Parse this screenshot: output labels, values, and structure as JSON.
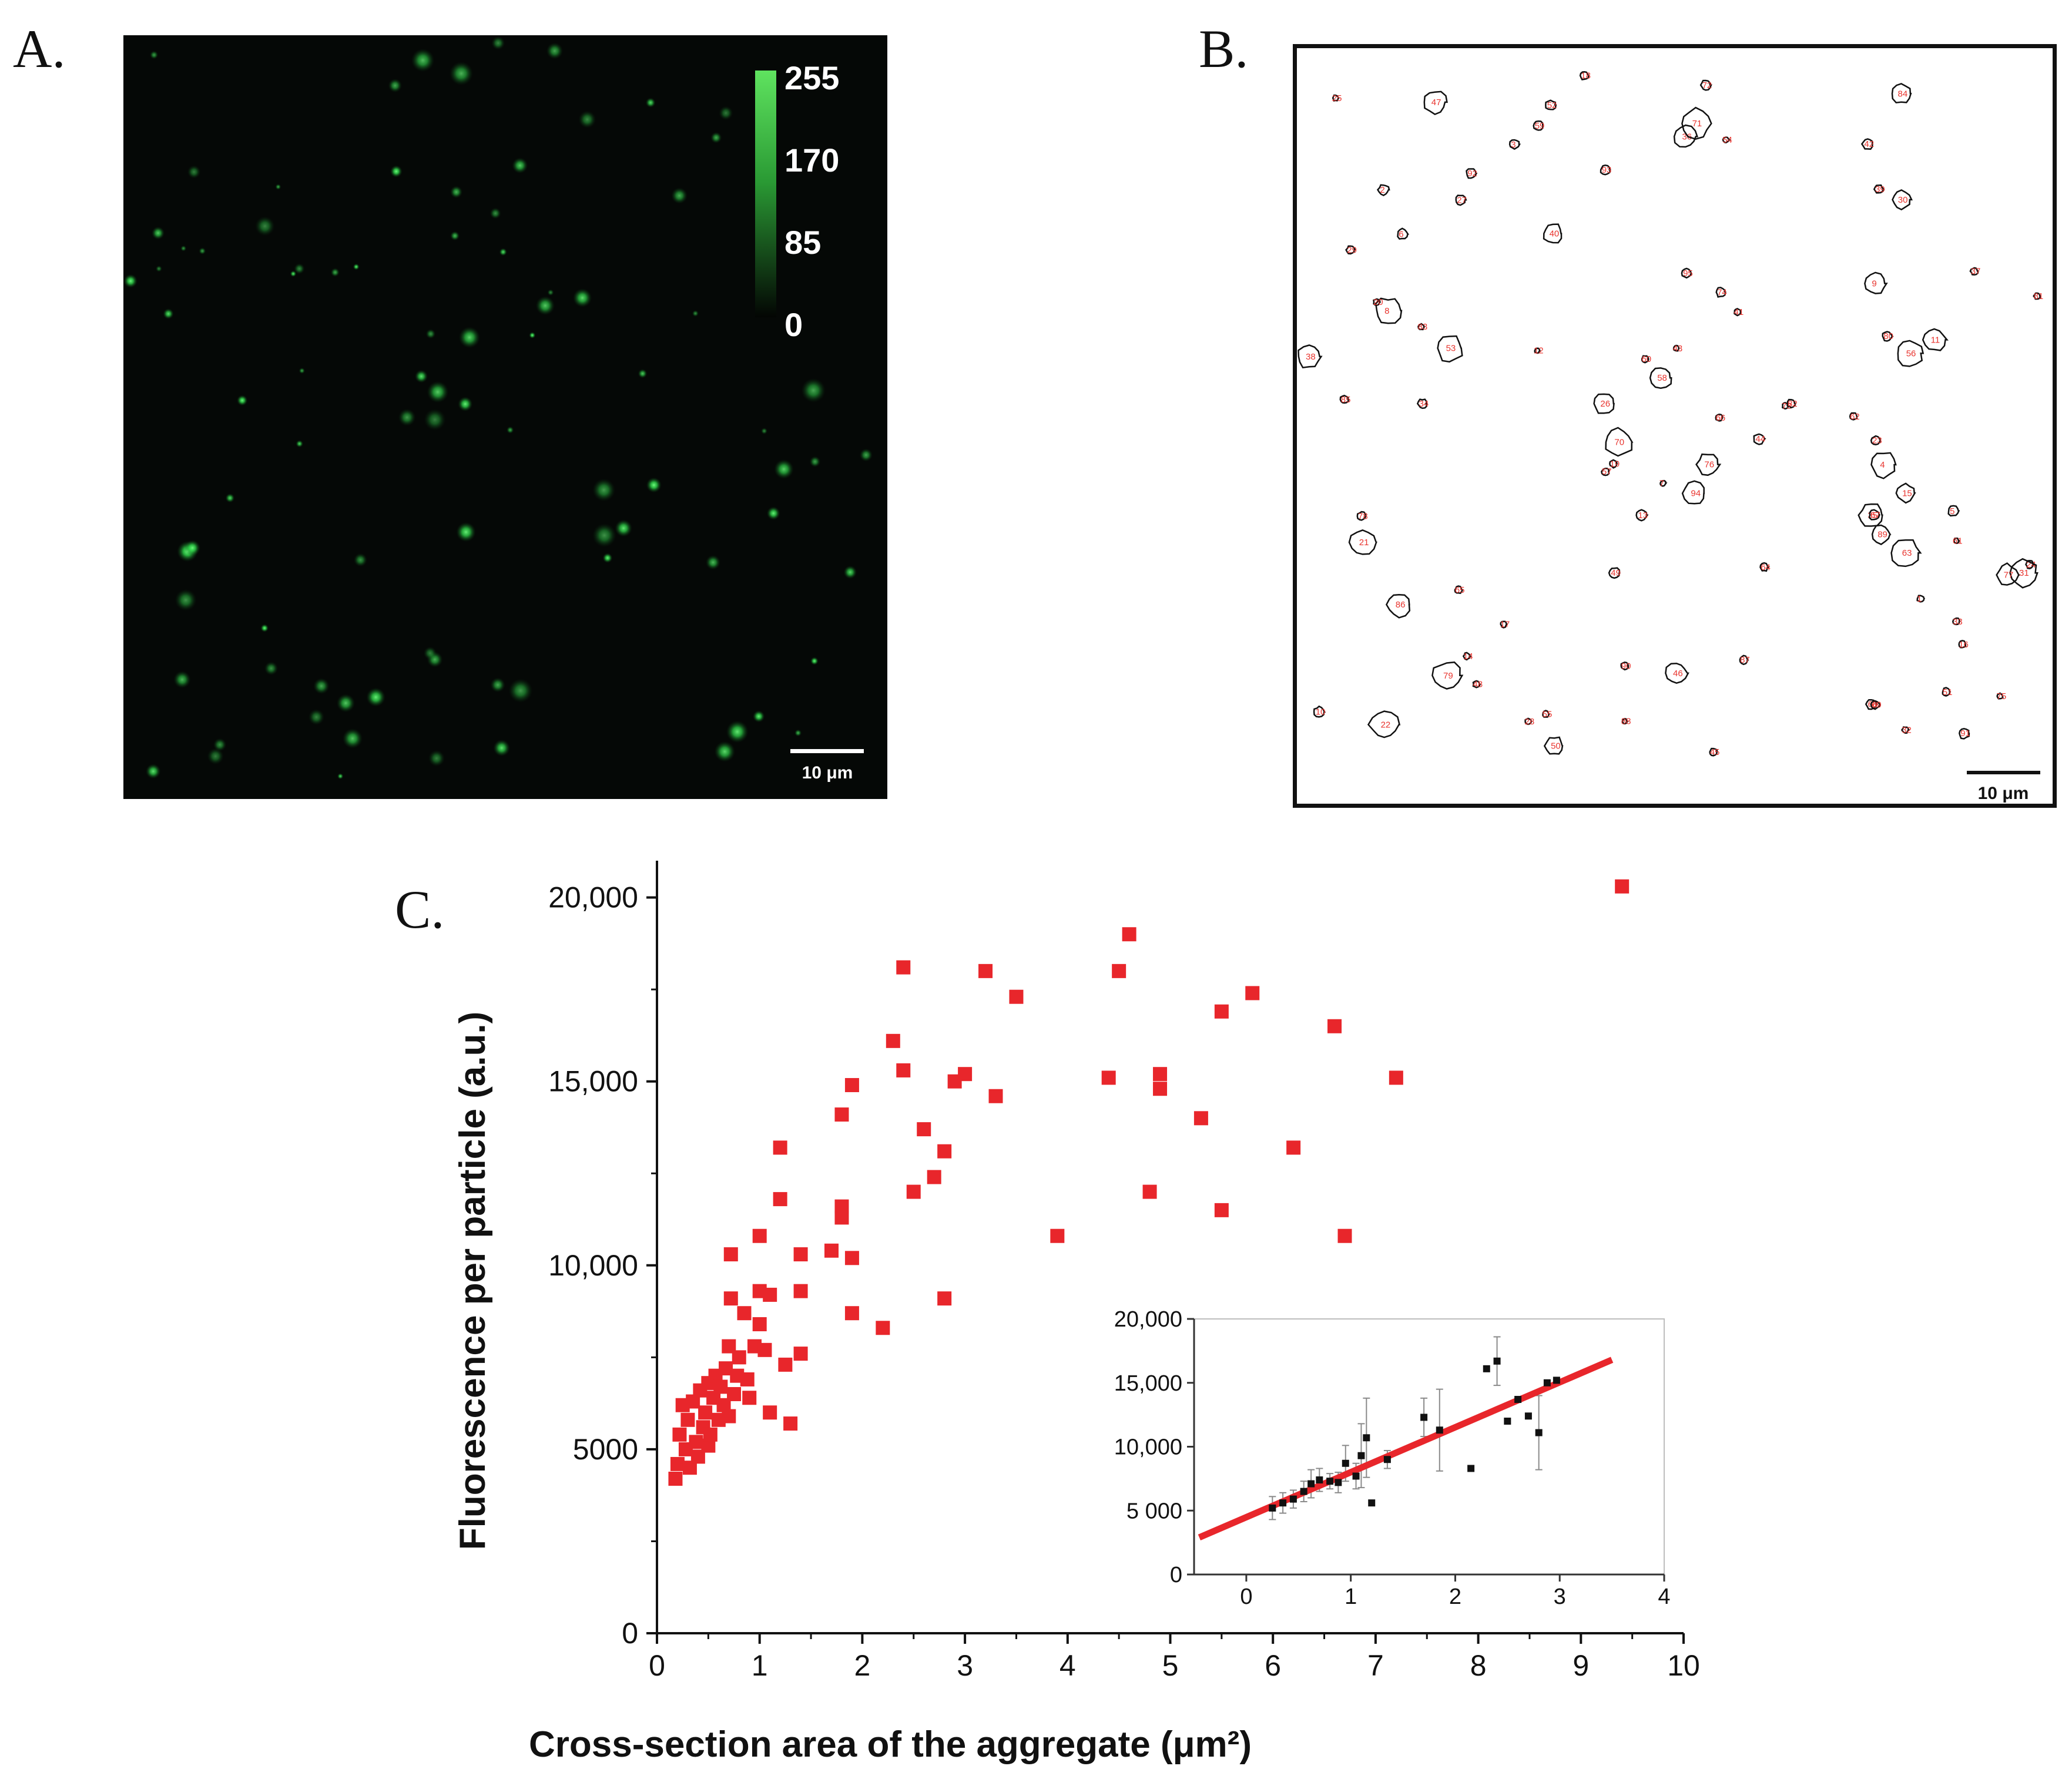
{
  "labels": {
    "a": "A.",
    "b": "B.",
    "c": "C."
  },
  "panel_a": {
    "colorbar_ticks": [
      "255",
      "170",
      "85",
      "0"
    ],
    "scalebar_label": "10 μm",
    "colors": {
      "background": "#050806",
      "particle": "#2fd84a",
      "bar_top": "#3be04f"
    }
  },
  "panel_b": {
    "scalebar_label": "10 μm",
    "colors": {
      "outline": "#111111",
      "number": "#e8342e"
    }
  },
  "chart_data": [
    {
      "type": "scatter",
      "title": "",
      "xlabel": "Cross-section area of the aggregate (μm²)",
      "ylabel": "Fluorescence per particle (a.u.)",
      "xlim": [
        0,
        10
      ],
      "ylim": [
        0,
        21000
      ],
      "x_ticks": [
        "0",
        "1",
        "2",
        "3",
        "4",
        "5",
        "6",
        "7",
        "8",
        "9",
        "10"
      ],
      "y_ticks": [
        "0",
        "5000",
        "10,000",
        "15,000",
        "20,000"
      ],
      "marker_color": "#e8262b",
      "points": [
        [
          0.18,
          4200
        ],
        [
          0.2,
          4600
        ],
        [
          0.22,
          5400
        ],
        [
          0.25,
          6200
        ],
        [
          0.28,
          5000
        ],
        [
          0.3,
          5800
        ],
        [
          0.32,
          4500
        ],
        [
          0.35,
          6300
        ],
        [
          0.38,
          5200
        ],
        [
          0.4,
          4800
        ],
        [
          0.42,
          6600
        ],
        [
          0.45,
          5600
        ],
        [
          0.47,
          6000
        ],
        [
          0.5,
          5100
        ],
        [
          0.5,
          6800
        ],
        [
          0.52,
          5400
        ],
        [
          0.55,
          6400
        ],
        [
          0.57,
          7000
        ],
        [
          0.6,
          5800
        ],
        [
          0.62,
          6700
        ],
        [
          0.65,
          6200
        ],
        [
          0.67,
          7200
        ],
        [
          0.7,
          7800
        ],
        [
          0.7,
          5900
        ],
        [
          0.72,
          9100
        ],
        [
          0.72,
          10300
        ],
        [
          0.75,
          6500
        ],
        [
          0.78,
          7000
        ],
        [
          0.8,
          7500
        ],
        [
          0.85,
          8700
        ],
        [
          0.88,
          6900
        ],
        [
          0.9,
          6400
        ],
        [
          0.95,
          7800
        ],
        [
          1.0,
          8400
        ],
        [
          1.0,
          9300
        ],
        [
          1.0,
          10800
        ],
        [
          1.05,
          7700
        ],
        [
          1.1,
          9200
        ],
        [
          1.1,
          6000
        ],
        [
          1.2,
          11800
        ],
        [
          1.2,
          13200
        ],
        [
          1.25,
          7300
        ],
        [
          1.3,
          5700
        ],
        [
          1.4,
          7600
        ],
        [
          1.4,
          9300
        ],
        [
          1.4,
          10300
        ],
        [
          1.7,
          10400
        ],
        [
          1.8,
          11600
        ],
        [
          1.8,
          11300
        ],
        [
          1.8,
          14100
        ],
        [
          1.9,
          10200
        ],
        [
          1.9,
          8700
        ],
        [
          1.9,
          14900
        ],
        [
          2.2,
          8300
        ],
        [
          2.3,
          16100
        ],
        [
          2.4,
          18100
        ],
        [
          2.4,
          15300
        ],
        [
          2.5,
          12000
        ],
        [
          2.6,
          13700
        ],
        [
          2.7,
          12400
        ],
        [
          2.8,
          13100
        ],
        [
          2.8,
          9100
        ],
        [
          2.9,
          15000
        ],
        [
          3.0,
          15200
        ],
        [
          3.2,
          18000
        ],
        [
          3.3,
          14600
        ],
        [
          3.5,
          17300
        ],
        [
          3.9,
          10800
        ],
        [
          4.4,
          15100
        ],
        [
          4.5,
          18000
        ],
        [
          4.6,
          19000
        ],
        [
          4.8,
          12000
        ],
        [
          4.9,
          14800
        ],
        [
          4.9,
          15200
        ],
        [
          5.3,
          14000
        ],
        [
          5.5,
          16900
        ],
        [
          5.5,
          11500
        ],
        [
          5.8,
          17400
        ],
        [
          6.2,
          13200
        ],
        [
          6.6,
          16500
        ],
        [
          6.7,
          10800
        ],
        [
          7.2,
          15100
        ],
        [
          9.4,
          20300
        ]
      ]
    },
    {
      "type": "scatter",
      "title": "inset",
      "xlabel": "",
      "ylabel": "",
      "xlim": [
        -0.5,
        4
      ],
      "ylim": [
        0,
        20000
      ],
      "x_ticks": [
        "0",
        "1",
        "2",
        "3",
        "4"
      ],
      "y_ticks": [
        "0",
        "5 000",
        "10,000",
        "15,000",
        "20,000"
      ],
      "marker_color": "#111111",
      "fit_color": "#e8262b",
      "fit_line": {
        "x": [
          -0.45,
          3.5
        ],
        "y": [
          2900,
          16800
        ]
      },
      "points": [
        [
          0.25,
          5200,
          900
        ],
        [
          0.35,
          5600,
          800
        ],
        [
          0.45,
          5900,
          700
        ],
        [
          0.55,
          6500,
          800
        ],
        [
          0.62,
          7100,
          1100
        ],
        [
          0.7,
          7400,
          900
        ],
        [
          0.8,
          7300,
          600
        ],
        [
          0.88,
          7200,
          800
        ],
        [
          0.95,
          8700,
          1400
        ],
        [
          1.05,
          7700,
          1000
        ],
        [
          1.1,
          9300,
          2500
        ],
        [
          1.15,
          10700,
          3100
        ],
        [
          1.2,
          5600,
          0
        ],
        [
          1.35,
          9000,
          700
        ],
        [
          1.7,
          12300,
          1500
        ],
        [
          1.85,
          11300,
          3200
        ],
        [
          2.15,
          8300,
          0
        ],
        [
          2.3,
          16100,
          0
        ],
        [
          2.4,
          16700,
          1900
        ],
        [
          2.5,
          12000,
          0
        ],
        [
          2.6,
          13700,
          0
        ],
        [
          2.7,
          12400,
          0
        ],
        [
          2.8,
          11100,
          2900
        ],
        [
          2.88,
          15000,
          0
        ],
        [
          2.97,
          15200,
          0
        ]
      ]
    }
  ]
}
